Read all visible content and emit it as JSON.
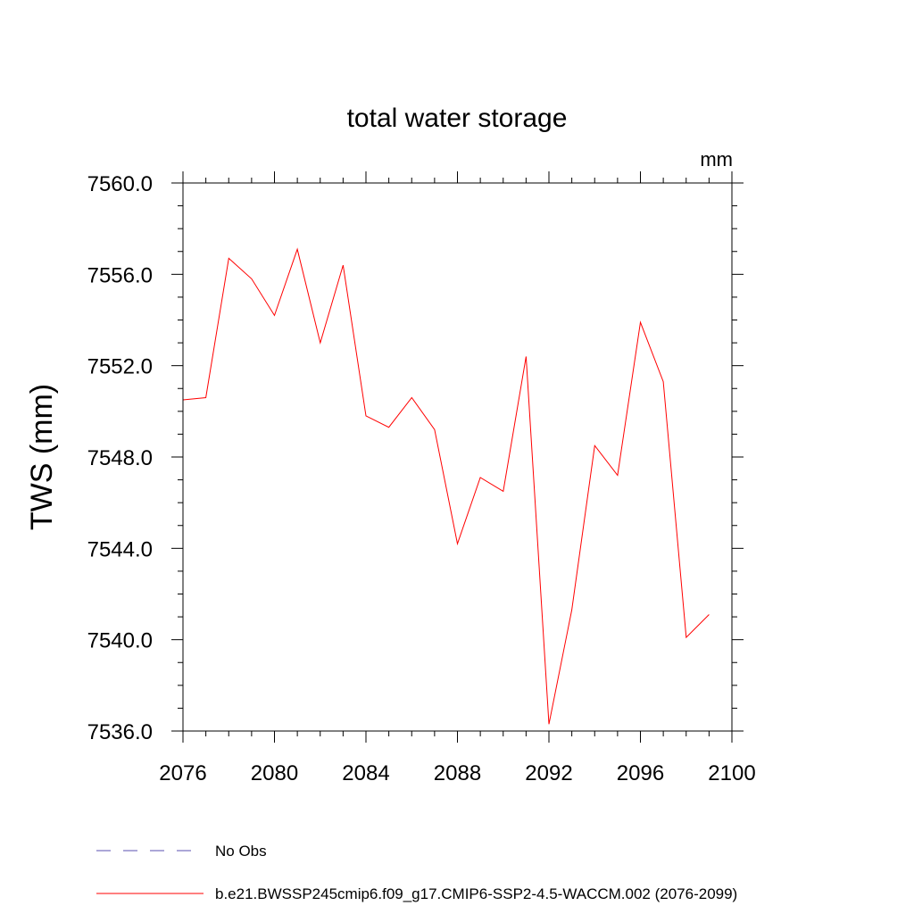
{
  "chart_data": {
    "type": "line",
    "title": "total water storage",
    "units_label": "mm",
    "xlabel": "",
    "ylabel": "TWS  (mm)",
    "xlim": [
      2076,
      2100
    ],
    "ylim": [
      7536.0,
      7560.0
    ],
    "x_ticks": [
      2076,
      2080,
      2084,
      2088,
      2092,
      2096,
      2100
    ],
    "x_tick_labels": [
      "2076",
      "2080",
      "2084",
      "2088",
      "2092",
      "2096",
      "2100"
    ],
    "y_ticks": [
      7536.0,
      7540.0,
      7544.0,
      7548.0,
      7552.0,
      7556.0,
      7560.0
    ],
    "y_tick_labels": [
      "7536.0",
      "7540.0",
      "7544.0",
      "7548.0",
      "7552.0",
      "7556.0",
      "7560.0"
    ],
    "x_minor_step": 1,
    "y_minor_step": 1,
    "grid": false,
    "series": [
      {
        "name": "b.e21.BWSSP245cmip6.f09_g17.CMIP6-SSP2-4.5-WACCM.002 (2076-2099)",
        "color": "#ff0000",
        "dash": "solid",
        "x": [
          2076,
          2077,
          2078,
          2079,
          2080,
          2081,
          2082,
          2083,
          2084,
          2085,
          2086,
          2087,
          2088,
          2089,
          2090,
          2091,
          2092,
          2093,
          2094,
          2095,
          2096,
          2097,
          2098,
          2099
        ],
        "values": [
          7550.5,
          7550.6,
          7556.7,
          7555.8,
          7554.2,
          7557.1,
          7553.0,
          7556.4,
          7549.8,
          7549.3,
          7550.6,
          7549.2,
          7544.2,
          7547.1,
          7546.5,
          7552.4,
          7536.3,
          7541.3,
          7548.5,
          7547.2,
          7553.9,
          7551.3,
          7540.1,
          7541.1
        ]
      }
    ],
    "legend": {
      "placement": "bottom",
      "entries": [
        {
          "label": "No Obs",
          "color": "#5a4fb0",
          "dash": "dashed"
        },
        {
          "label": "b.e21.BWSSP245cmip6.f09_g17.CMIP6-SSP2-4.5-WACCM.002 (2076-2099)",
          "color": "#ff0000",
          "dash": "solid"
        }
      ]
    }
  }
}
